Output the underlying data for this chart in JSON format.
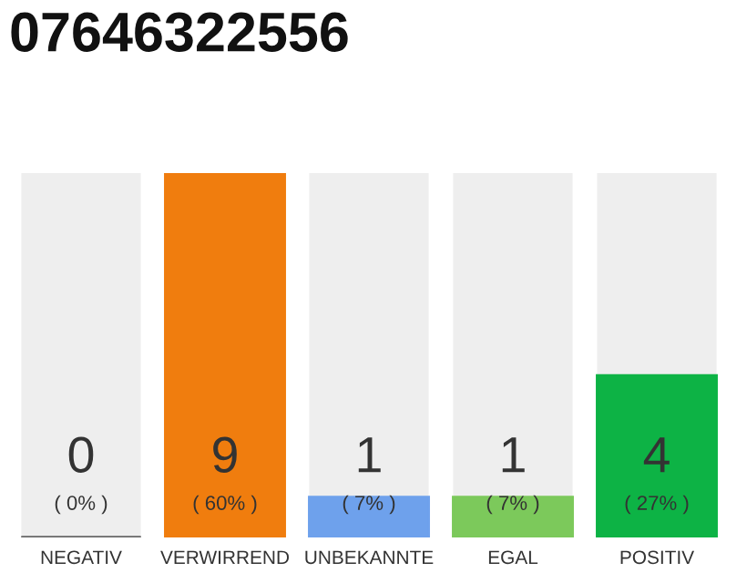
{
  "chart_data": {
    "type": "bar",
    "title": "07646322556",
    "categories": [
      "NEGATIV",
      "VERWIRREND",
      "UNBEKANNTE",
      "EGAL",
      "POSITIV"
    ],
    "values": [
      0,
      9,
      1,
      1,
      4
    ],
    "colors": [
      "#666666",
      "#f07d0e",
      "#6ea1ec",
      "#7cc95b",
      "#0db345"
    ],
    "ylim": [
      0,
      9
    ],
    "tick_labels": "x",
    "value_labels": [
      "0\n( 0% )",
      "9\n( 60% )",
      "1\n( 7% )",
      "1\n( 7% )",
      "4\n( 27% )"
    ]
  }
}
